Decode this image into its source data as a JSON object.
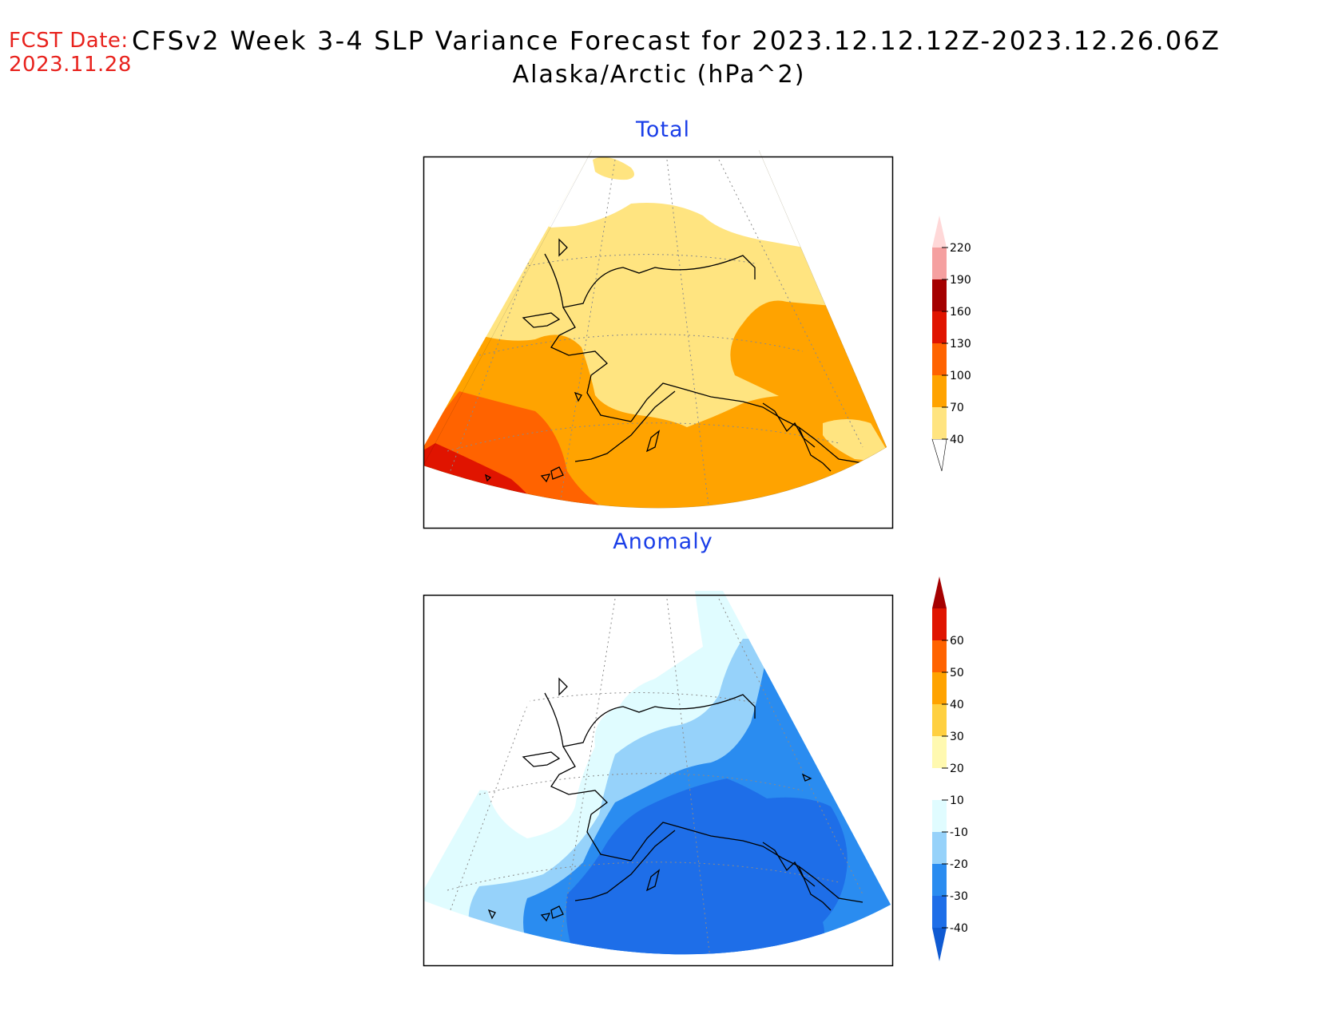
{
  "header": {
    "fcst_label": "FCST Date:",
    "fcst_date": "2023.11.28",
    "title": "CFSv2 Week 3-4 SLP Variance Forecast for 2023.12.12.12Z-2023.12.26.06Z",
    "subtitle": "Alaska/Arctic (hPa^2)"
  },
  "panels": {
    "total": {
      "title": "Total"
    },
    "anomaly": {
      "title": "Anomaly"
    }
  },
  "colorbars": {
    "total": {
      "ticks": [
        "40",
        "70",
        "100",
        "130",
        "160",
        "190",
        "220"
      ],
      "colors": [
        "#ffe480",
        "#ffa300",
        "#ff6300",
        "#e01400",
        "#a50000",
        "#f5a0a0",
        "#ffd8d8"
      ],
      "below_color": "#ffffff"
    },
    "anomaly": {
      "ticks": [
        "-40",
        "-30",
        "-20",
        "-10",
        "10",
        "20",
        "30",
        "40",
        "50",
        "60"
      ],
      "colors": [
        "#1e6ee8",
        "#2a8cf0",
        "#96d2fa",
        "#e0fcff",
        "#ffffff",
        "#fff9b0",
        "#ffd040",
        "#ffa300",
        "#ff6300",
        "#e01400"
      ],
      "below_color": "#0f5ad2",
      "above_color": "#a50000"
    }
  },
  "colors": {
    "title_blue": "#1a3ee8",
    "fcst_red": "#e8221d"
  }
}
